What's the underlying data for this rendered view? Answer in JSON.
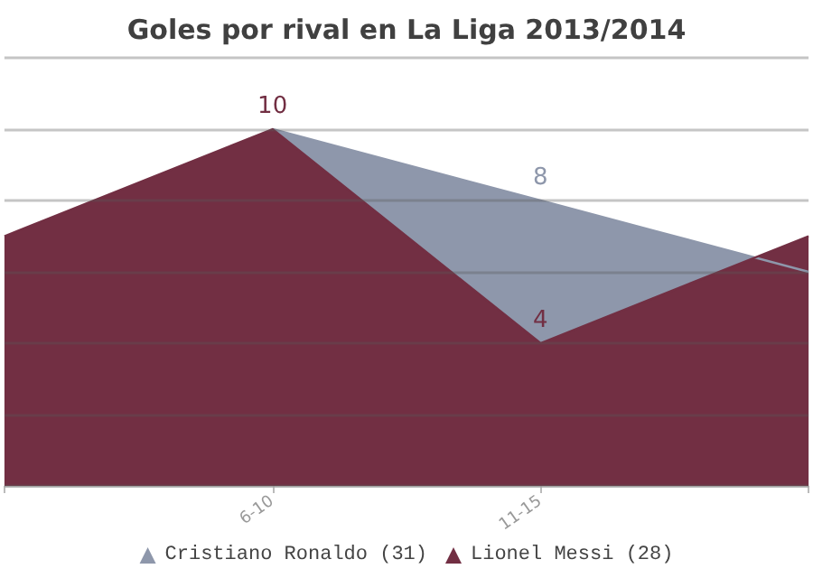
{
  "chart_data": {
    "type": "area",
    "title": "Goles por rival en La Liga 2013/2014",
    "categories": [
      null,
      "6-10",
      "11-15",
      null
    ],
    "series": [
      {
        "name": "Cristiano Ronaldo (31)",
        "color": "#8e97ab",
        "values": [
          null,
          10,
          8,
          6
        ],
        "value_labels": [
          null,
          null,
          "8",
          null
        ]
      },
      {
        "name": "Lionel Messi (28)",
        "color": "#722f43",
        "values": [
          7,
          10,
          4,
          7
        ],
        "value_labels": [
          null,
          "10",
          "4",
          null
        ]
      }
    ],
    "ylim": [
      0,
      12
    ],
    "yticks": [
      {
        "value": 0,
        "label": null
      },
      {
        "value": 2,
        "label": null
      },
      {
        "value": 4,
        "label": null
      },
      {
        "value": 6,
        "label": null
      },
      {
        "value": 8,
        "label": null
      },
      {
        "value": 10,
        "label": null
      },
      {
        "value": 12,
        "label": null
      }
    ],
    "tick_labels": "x",
    "grid": "y",
    "legend": "bottom",
    "marker": "none"
  }
}
